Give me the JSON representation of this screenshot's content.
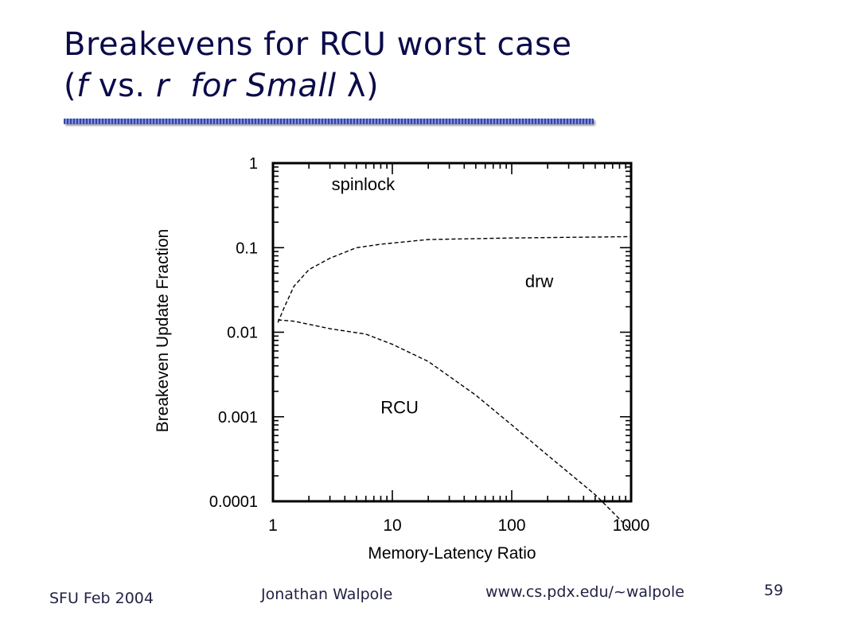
{
  "slide": {
    "title_line1": "Breakevens for RCU worst case",
    "title_line2": {
      "open_paren": "(",
      "f": "f",
      "vs": " vs. ",
      "r": "r",
      "for_small": "  for Small ",
      "lambda": "λ",
      "close_paren": ")"
    }
  },
  "chart_data": {
    "type": "line",
    "title": "",
    "xlabel": "Memory-Latency Ratio",
    "ylabel": "Breakeven Update Fraction",
    "x_scale": "log",
    "y_scale": "log",
    "xlim": [
      1,
      1000
    ],
    "ylim": [
      0.0001,
      1
    ],
    "x_ticks": [
      {
        "value": 1,
        "label": "1"
      },
      {
        "value": 10,
        "label": "10"
      },
      {
        "value": 100,
        "label": "100"
      },
      {
        "value": 1000,
        "label": "1000"
      }
    ],
    "y_ticks": [
      {
        "value": 1,
        "label": "1"
      },
      {
        "value": 0.1,
        "label": "0.1"
      },
      {
        "value": 0.01,
        "label": "0.01"
      },
      {
        "value": 0.001,
        "label": "0.001"
      },
      {
        "value": 0.0001,
        "label": "0.0001"
      }
    ],
    "grid": false,
    "line_style": "dashed",
    "series": [
      {
        "x": [
          1.1,
          1.25,
          1.5,
          2,
          3,
          5,
          8,
          20,
          100,
          1000
        ],
        "y": [
          0.013,
          0.02,
          0.035,
          0.055,
          0.075,
          0.1,
          0.11,
          0.125,
          0.13,
          0.135
        ]
      },
      {
        "x": [
          1.1,
          1.5,
          3,
          6,
          10,
          20,
          50,
          100,
          200,
          500,
          1000
        ],
        "y": [
          0.014,
          0.0135,
          0.011,
          0.0095,
          0.0072,
          0.0045,
          0.0018,
          0.0008,
          0.00035,
          0.00012,
          4.5e-05
        ]
      }
    ],
    "region_labels": [
      {
        "text": "spinlock",
        "x": 5.7,
        "y": 0.48
      },
      {
        "text": "drw",
        "x": 170,
        "y": 0.034
      },
      {
        "text": "RCU",
        "x": 11.5,
        "y": 0.0011
      }
    ]
  },
  "footer": {
    "left": "SFU Feb 2004",
    "center": "Jonathan Walpole",
    "url": "www.cs.pdx.edu/~walpole",
    "page": "59"
  }
}
